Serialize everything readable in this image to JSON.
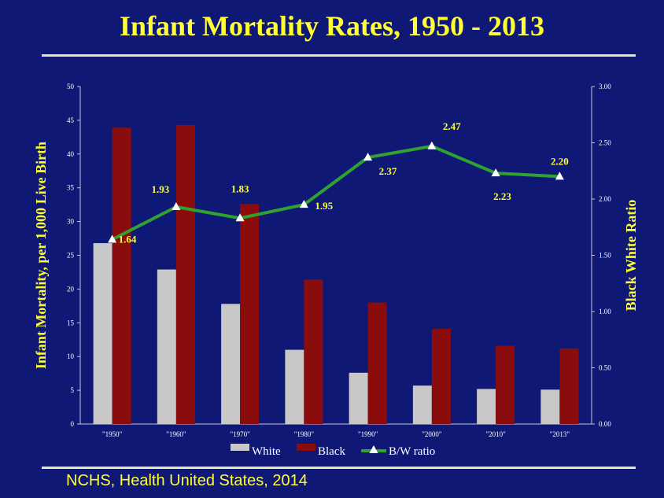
{
  "slide": {
    "title": "Infant Mortality Rates, 1950 - 2013",
    "source": "NCHS, Health United States, 2014"
  },
  "colors": {
    "background": "#0f1875",
    "title": "#ffff33",
    "white_series": "#c8c8c8",
    "black_series": "#8b0c0c",
    "ratio_line": "#2fa32f",
    "ratio_marker": "#ffffff",
    "ratio_labels": "#ffff33"
  },
  "chart_data": {
    "type": "bar",
    "categories": [
      "\"1950\"",
      "\"1960\"",
      "\"1970\"",
      "\"1980\"",
      "\"1990\"",
      "\"2000\"",
      "\"2010\"",
      "\"2013\""
    ],
    "series": [
      {
        "name": "White",
        "type": "bar",
        "axis": "left",
        "values": [
          26.8,
          22.9,
          17.8,
          11.0,
          7.6,
          5.7,
          5.2,
          5.1
        ]
      },
      {
        "name": "Black",
        "type": "bar",
        "axis": "left",
        "values": [
          43.9,
          44.3,
          32.6,
          21.4,
          18.0,
          14.1,
          11.6,
          11.2
        ]
      },
      {
        "name": "B/W ratio",
        "type": "line",
        "axis": "right",
        "marker": "triangle",
        "values": [
          1.64,
          1.93,
          1.83,
          1.95,
          2.37,
          2.47,
          2.23,
          2.2
        ]
      }
    ],
    "data_labels": [
      "1.64",
      "1.93",
      "1.83",
      "1.95",
      "2.37",
      "2.47",
      "2.23",
      "2.20"
    ],
    "ylabel": "Infant Mortality, per  1,000 Live Birth",
    "y2label": "Black White Ratio",
    "ylim": [
      0,
      50
    ],
    "y2lim": [
      0,
      3
    ],
    "yticks": [
      "0",
      "5",
      "10",
      "15",
      "20",
      "25",
      "30",
      "35",
      "40",
      "45",
      "50"
    ],
    "y2ticks": [
      "0.00",
      "0.50",
      "1.00",
      "1.50",
      "2.00",
      "2.50",
      "3.00"
    ],
    "grid": false,
    "legend": "bottom"
  }
}
